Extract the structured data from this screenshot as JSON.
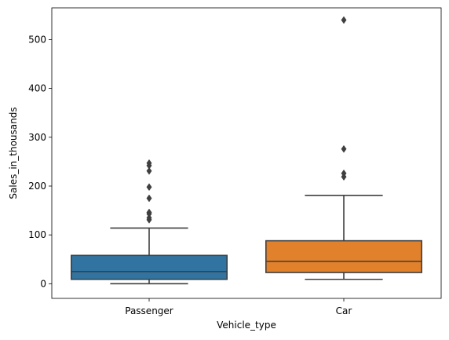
{
  "chart_data": {
    "type": "box",
    "xlabel": "Vehicle_type",
    "ylabel": "Sales_in_thousands",
    "ylim": [
      -30,
      565
    ],
    "yticks": [
      0,
      100,
      200,
      300,
      400,
      500
    ],
    "grid": false,
    "categories": [
      "Passenger",
      "Car"
    ],
    "boxes": [
      {
        "category": "Passenger",
        "color": "#3274a1",
        "whisker_low": 0,
        "q1": 9,
        "median": 25,
        "q3": 58,
        "whisker_high": 114,
        "outliers": [
          131,
          135,
          143,
          146,
          175,
          198,
          231,
          242,
          247
        ]
      },
      {
        "category": "Car",
        "color": "#e1812c",
        "whisker_low": 9,
        "q1": 23,
        "median": 46,
        "q3": 88,
        "whisker_high": 181,
        "outliers": [
          219,
          226,
          276,
          540
        ]
      }
    ]
  }
}
